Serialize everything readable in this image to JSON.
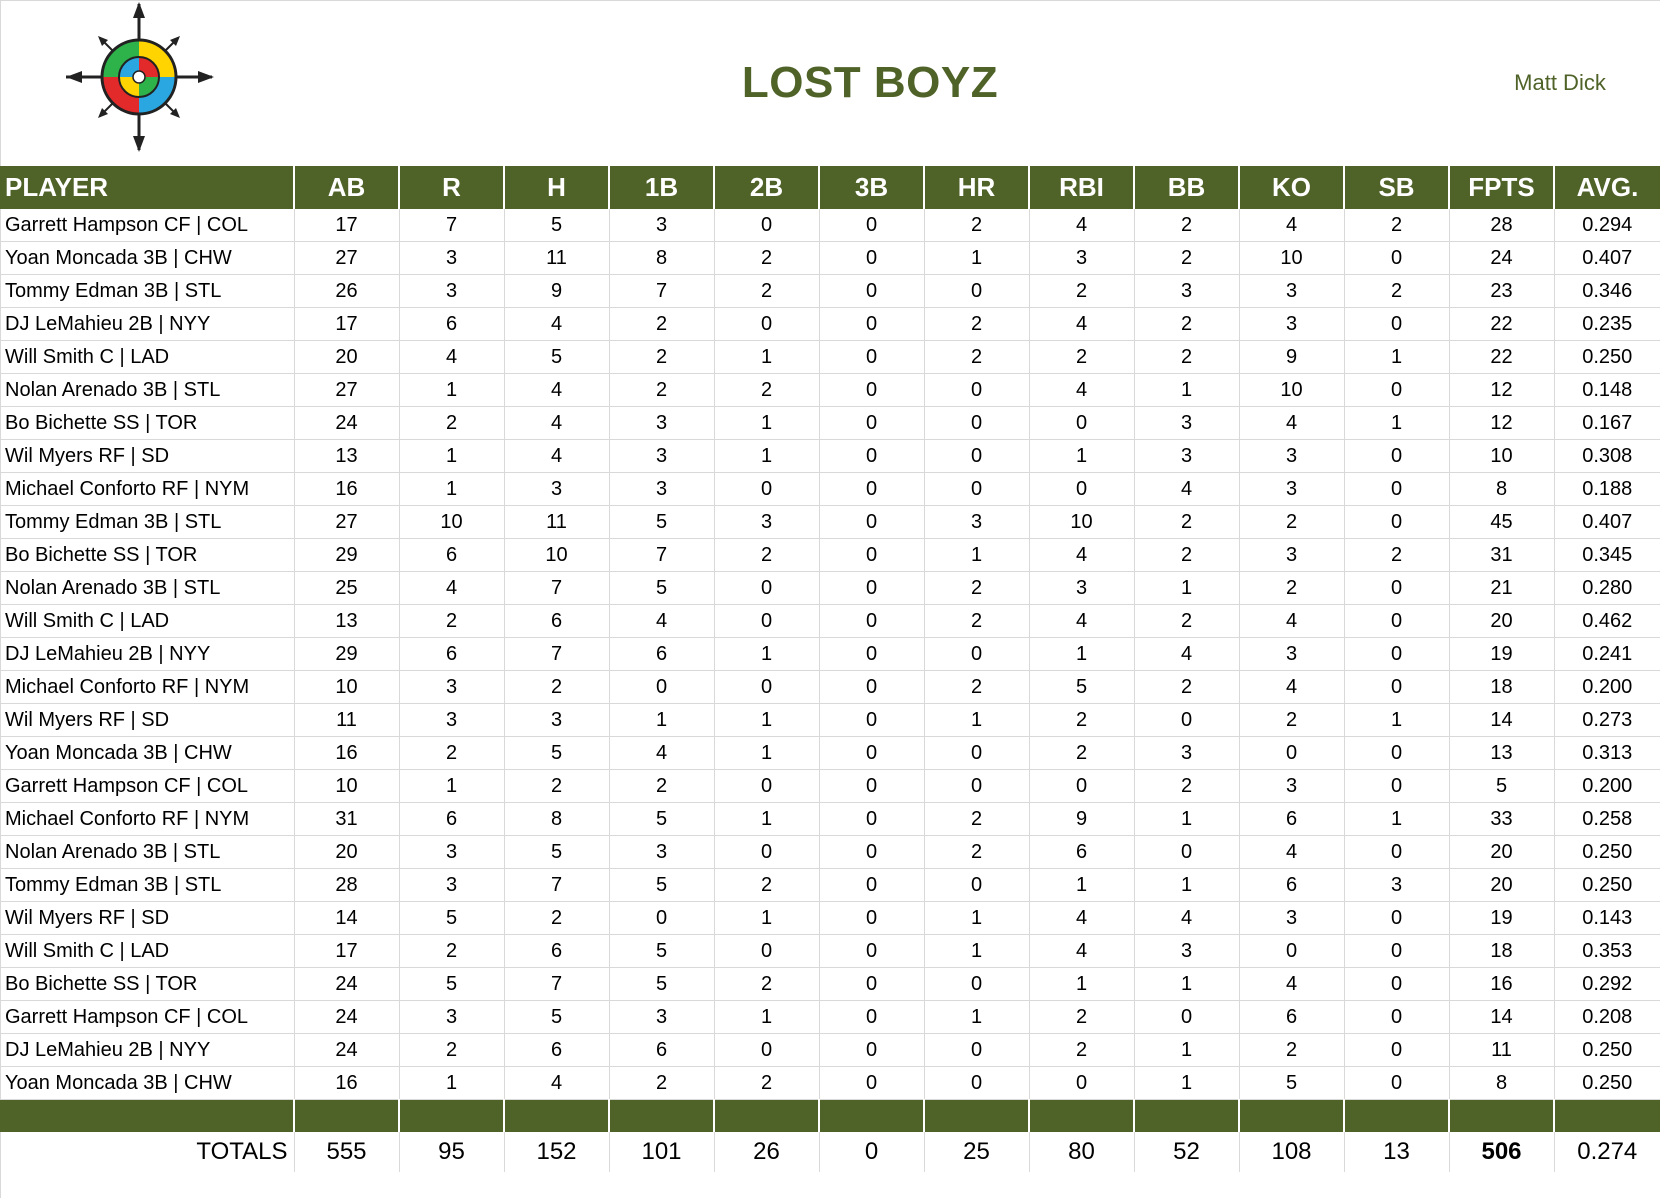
{
  "header": {
    "title": "LOST BOYZ",
    "owner": "Matt Dick",
    "logo_icon": "compass-target-icon"
  },
  "colors": {
    "header_bg": "#4f6228",
    "title_text": "#4f6228",
    "grid_line": "#d9d9d9"
  },
  "table": {
    "columns": [
      "PLAYER",
      "AB",
      "R",
      "H",
      "1B",
      "2B",
      "3B",
      "HR",
      "RBI",
      "BB",
      "KO",
      "SB",
      "FPTS",
      "AVG."
    ],
    "rows": [
      [
        "Garrett Hampson CF | COL",
        "17",
        "7",
        "5",
        "3",
        "0",
        "0",
        "2",
        "4",
        "2",
        "4",
        "2",
        "28",
        "0.294"
      ],
      [
        "Yoan Moncada 3B | CHW",
        "27",
        "3",
        "11",
        "8",
        "2",
        "0",
        "1",
        "3",
        "2",
        "10",
        "0",
        "24",
        "0.407"
      ],
      [
        "Tommy Edman 3B | STL",
        "26",
        "3",
        "9",
        "7",
        "2",
        "0",
        "0",
        "2",
        "3",
        "3",
        "2",
        "23",
        "0.346"
      ],
      [
        "DJ LeMahieu 2B | NYY",
        "17",
        "6",
        "4",
        "2",
        "0",
        "0",
        "2",
        "4",
        "2",
        "3",
        "0",
        "22",
        "0.235"
      ],
      [
        "Will Smith C | LAD",
        "20",
        "4",
        "5",
        "2",
        "1",
        "0",
        "2",
        "2",
        "2",
        "9",
        "1",
        "22",
        "0.250"
      ],
      [
        "Nolan Arenado 3B | STL",
        "27",
        "1",
        "4",
        "2",
        "2",
        "0",
        "0",
        "4",
        "1",
        "10",
        "0",
        "12",
        "0.148"
      ],
      [
        "Bo Bichette SS | TOR",
        "24",
        "2",
        "4",
        "3",
        "1",
        "0",
        "0",
        "0",
        "3",
        "4",
        "1",
        "12",
        "0.167"
      ],
      [
        "Wil Myers RF | SD",
        "13",
        "1",
        "4",
        "3",
        "1",
        "0",
        "0",
        "1",
        "3",
        "3",
        "0",
        "10",
        "0.308"
      ],
      [
        "Michael Conforto RF | NYM",
        "16",
        "1",
        "3",
        "3",
        "0",
        "0",
        "0",
        "0",
        "4",
        "3",
        "0",
        "8",
        "0.188"
      ],
      [
        "Tommy Edman 3B | STL",
        "27",
        "10",
        "11",
        "5",
        "3",
        "0",
        "3",
        "10",
        "2",
        "2",
        "0",
        "45",
        "0.407"
      ],
      [
        "Bo Bichette SS | TOR",
        "29",
        "6",
        "10",
        "7",
        "2",
        "0",
        "1",
        "4",
        "2",
        "3",
        "2",
        "31",
        "0.345"
      ],
      [
        "Nolan Arenado 3B | STL",
        "25",
        "4",
        "7",
        "5",
        "0",
        "0",
        "2",
        "3",
        "1",
        "2",
        "0",
        "21",
        "0.280"
      ],
      [
        "Will Smith C | LAD",
        "13",
        "2",
        "6",
        "4",
        "0",
        "0",
        "2",
        "4",
        "2",
        "4",
        "0",
        "20",
        "0.462"
      ],
      [
        "DJ LeMahieu 2B | NYY",
        "29",
        "6",
        "7",
        "6",
        "1",
        "0",
        "0",
        "1",
        "4",
        "3",
        "0",
        "19",
        "0.241"
      ],
      [
        "Michael Conforto RF | NYM",
        "10",
        "3",
        "2",
        "0",
        "0",
        "0",
        "2",
        "5",
        "2",
        "4",
        "0",
        "18",
        "0.200"
      ],
      [
        "Wil Myers RF | SD",
        "11",
        "3",
        "3",
        "1",
        "1",
        "0",
        "1",
        "2",
        "0",
        "2",
        "1",
        "14",
        "0.273"
      ],
      [
        "Yoan Moncada 3B | CHW",
        "16",
        "2",
        "5",
        "4",
        "1",
        "0",
        "0",
        "2",
        "3",
        "0",
        "0",
        "13",
        "0.313"
      ],
      [
        "Garrett Hampson CF | COL",
        "10",
        "1",
        "2",
        "2",
        "0",
        "0",
        "0",
        "0",
        "2",
        "3",
        "0",
        "5",
        "0.200"
      ],
      [
        "Michael Conforto RF | NYM",
        "31",
        "6",
        "8",
        "5",
        "1",
        "0",
        "2",
        "9",
        "1",
        "6",
        "1",
        "33",
        "0.258"
      ],
      [
        "Nolan Arenado 3B | STL",
        "20",
        "3",
        "5",
        "3",
        "0",
        "0",
        "2",
        "6",
        "0",
        "4",
        "0",
        "20",
        "0.250"
      ],
      [
        "Tommy Edman 3B | STL",
        "28",
        "3",
        "7",
        "5",
        "2",
        "0",
        "0",
        "1",
        "1",
        "6",
        "3",
        "20",
        "0.250"
      ],
      [
        "Wil Myers RF | SD",
        "14",
        "5",
        "2",
        "0",
        "1",
        "0",
        "1",
        "4",
        "4",
        "3",
        "0",
        "19",
        "0.143"
      ],
      [
        "Will Smith C | LAD",
        "17",
        "2",
        "6",
        "5",
        "0",
        "0",
        "1",
        "4",
        "3",
        "0",
        "0",
        "18",
        "0.353"
      ],
      [
        "Bo Bichette SS | TOR",
        "24",
        "5",
        "7",
        "5",
        "2",
        "0",
        "0",
        "1",
        "1",
        "4",
        "0",
        "16",
        "0.292"
      ],
      [
        "Garrett Hampson CF | COL",
        "24",
        "3",
        "5",
        "3",
        "1",
        "0",
        "1",
        "2",
        "0",
        "6",
        "0",
        "14",
        "0.208"
      ],
      [
        "DJ LeMahieu 2B | NYY",
        "24",
        "2",
        "6",
        "6",
        "0",
        "0",
        "0",
        "2",
        "1",
        "2",
        "0",
        "11",
        "0.250"
      ],
      [
        "Yoan Moncada 3B | CHW",
        "16",
        "1",
        "4",
        "2",
        "2",
        "0",
        "0",
        "0",
        "1",
        "5",
        "0",
        "8",
        "0.250"
      ]
    ],
    "totals": [
      "TOTALS",
      "555",
      "95",
      "152",
      "101",
      "26",
      "0",
      "25",
      "80",
      "52",
      "108",
      "13",
      "506",
      "0.274"
    ]
  }
}
